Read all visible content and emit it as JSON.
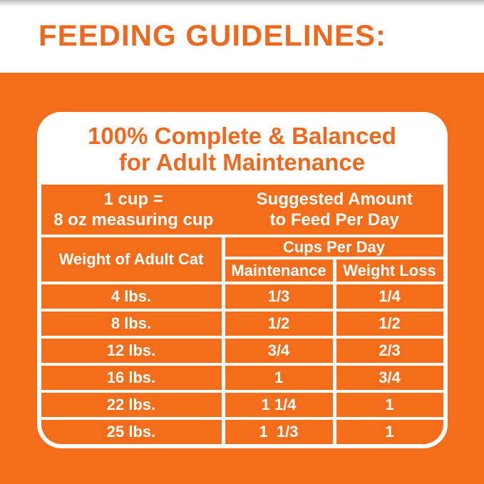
{
  "page": {
    "title": "FEEDING GUIDELINES:"
  },
  "colors": {
    "orange_background": "#F36D1A",
    "orange_heading_text": "#EE6920",
    "text_on_orange": "#FFFFFF",
    "top_edge_gray": "#BDBDBD"
  },
  "card": {
    "heading_line1": "100% Complete & Balanced",
    "heading_line2": "for Adult Maintenance",
    "cup_info_line1": "1 cup =",
    "cup_info_line2": "8 oz measuring cup",
    "suggested_line1": "Suggested Amount",
    "suggested_line2": "to Feed Per Day"
  },
  "table": {
    "weight_header": "Weight of Adult Cat",
    "cups_header": "Cups Per Day",
    "col_maintenance": "Maintenance",
    "col_weight_loss": "Weight Loss",
    "rows": [
      {
        "weight": "4 lbs.",
        "maintenance": "1/3",
        "weight_loss": "1/4"
      },
      {
        "weight": "8 lbs.",
        "maintenance": "1/2",
        "weight_loss": "1/2"
      },
      {
        "weight": "12 lbs.",
        "maintenance": "3/4",
        "weight_loss": "2/3"
      },
      {
        "weight": "16 lbs.",
        "maintenance": "1",
        "weight_loss": "3/4"
      },
      {
        "weight": "22 lbs.",
        "maintenance": "1 1/4",
        "weight_loss": "1"
      },
      {
        "weight": "25 lbs.",
        "maintenance": "1  1/3",
        "weight_loss": "1"
      }
    ]
  }
}
